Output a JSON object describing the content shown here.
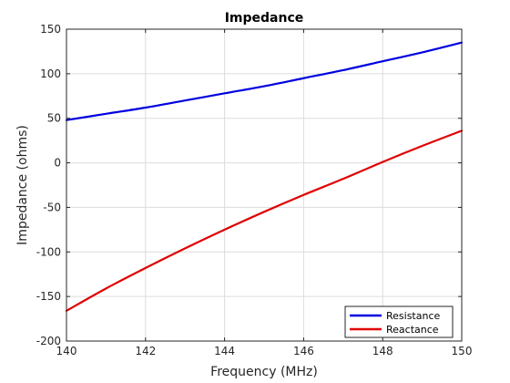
{
  "chart_data": {
    "type": "line",
    "title": "Impedance",
    "xlabel": "Frequency (MHz)",
    "ylabel": "Impedance (ohms)",
    "xlim": [
      140,
      150
    ],
    "ylim": [
      -200,
      150
    ],
    "xticks": [
      "140",
      "142",
      "144",
      "146",
      "148",
      "150"
    ],
    "yticks": [
      "-200",
      "-150",
      "-100",
      "-50",
      "0",
      "50",
      "100",
      "150"
    ],
    "grid": true,
    "legend_position": "bottom-right",
    "x": [
      140,
      141,
      142,
      143,
      144,
      145,
      146,
      147,
      148,
      149,
      150
    ],
    "series": [
      {
        "name": "Resistance",
        "color": "#0000e0",
        "values": [
          48,
          55,
          62,
          70,
          78,
          86,
          95,
          104,
          114,
          124,
          135
        ]
      },
      {
        "name": "Reactance",
        "color": "#e00000",
        "values": [
          -166,
          -141,
          -118,
          -96,
          -75,
          -55,
          -36,
          -18,
          1,
          19,
          36
        ]
      }
    ]
  }
}
